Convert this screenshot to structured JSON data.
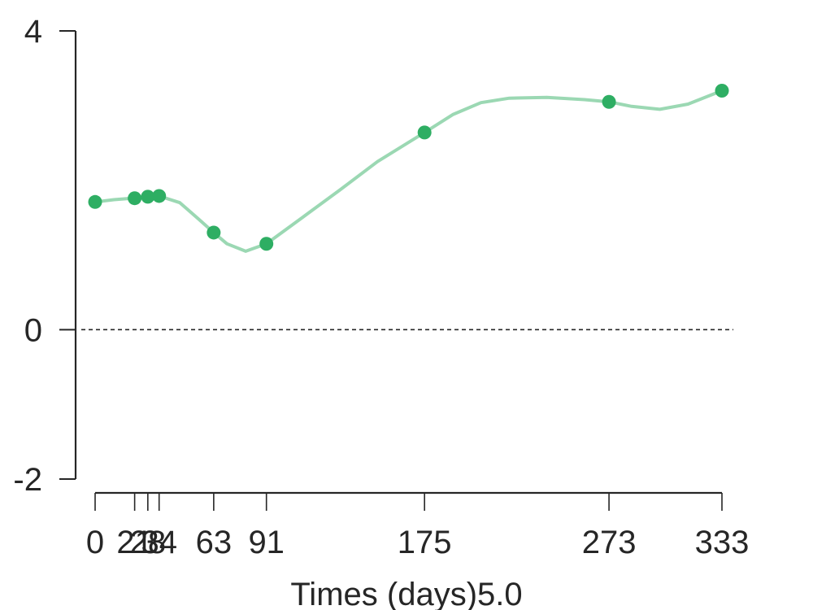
{
  "chart_data": {
    "type": "line",
    "title": "",
    "xlabel": "Times (days)5.0",
    "ylabel": "",
    "x": [
      0,
      21,
      28,
      34,
      63,
      91,
      175,
      273,
      333
    ],
    "series": [
      {
        "name": "",
        "values": [
          1.71,
          1.76,
          1.78,
          1.79,
          1.3,
          1.15,
          2.64,
          3.05,
          3.2
        ]
      }
    ],
    "curve": {
      "x": [
        0,
        10,
        25,
        34,
        45,
        55,
        63,
        70,
        80,
        91,
        110,
        130,
        150,
        175,
        190,
        205,
        220,
        240,
        260,
        273,
        285,
        300,
        315,
        333
      ],
      "values": [
        1.71,
        1.74,
        1.77,
        1.79,
        1.7,
        1.48,
        1.3,
        1.15,
        1.05,
        1.15,
        1.5,
        1.87,
        2.25,
        2.64,
        2.88,
        3.04,
        3.1,
        3.11,
        3.08,
        3.05,
        2.99,
        2.95,
        3.02,
        3.2
      ]
    },
    "xticks": [
      0,
      21,
      28,
      34,
      63,
      91,
      175,
      273,
      333
    ],
    "xtick_labels": [
      "0",
      "21",
      "28",
      "34",
      "63",
      "91",
      "175",
      "273",
      "333"
    ],
    "yticks": [
      -2,
      0,
      4
    ],
    "ytick_labels": [
      "-2",
      "0",
      "4"
    ],
    "ylim": [
      -2,
      4
    ],
    "xlim": [
      0,
      333
    ],
    "reference_line": {
      "y": 0,
      "style": "dashed"
    },
    "grid": false,
    "colors": {
      "marker": "#2eae63",
      "line": "#9bd8b3",
      "axis": "#262626"
    }
  }
}
